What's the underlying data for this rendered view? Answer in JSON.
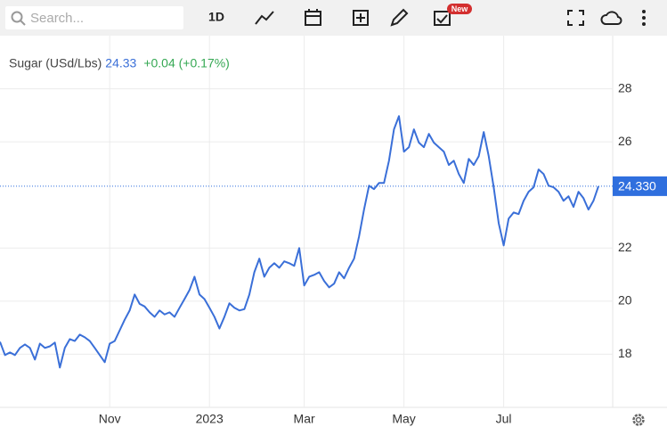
{
  "toolbar": {
    "search_placeholder": "Search...",
    "interval": "1D",
    "badge": "New"
  },
  "chart_data": {
    "type": "line",
    "header": {
      "symbol": "Sugar (USd/Lbs)",
      "price": "24.33",
      "change": "+0.04 (+0.17%)"
    },
    "categories": [
      null,
      null,
      null,
      null,
      null,
      null,
      null,
      null,
      null,
      null,
      null,
      null,
      null,
      null,
      null,
      null,
      null,
      null,
      null,
      null,
      null,
      null,
      "Nov",
      null,
      null,
      null,
      null,
      null,
      null,
      null,
      null,
      null,
      null,
      null,
      null,
      null,
      null,
      null,
      null,
      null,
      null,
      null,
      "2023",
      null,
      null,
      null,
      null,
      null,
      null,
      null,
      null,
      null,
      null,
      null,
      null,
      null,
      null,
      null,
      null,
      null,
      null,
      "Mar",
      null,
      null,
      null,
      null,
      null,
      null,
      null,
      null,
      null,
      null,
      null,
      null,
      null,
      null,
      null,
      null,
      null,
      null,
      null,
      "May",
      null,
      null,
      null,
      null,
      null,
      null,
      null,
      null,
      null,
      null,
      null,
      null,
      null,
      null,
      null,
      null,
      null,
      null,
      null,
      "Jul",
      null,
      null,
      null,
      null,
      null,
      null,
      null,
      null,
      null,
      null,
      null,
      null,
      null,
      null,
      null,
      null,
      null,
      null,
      null
    ],
    "values": [
      18.47,
      17.97,
      18.07,
      17.97,
      18.24,
      18.37,
      18.24,
      17.8,
      18.4,
      18.24,
      18.3,
      18.44,
      17.5,
      18.24,
      18.57,
      18.5,
      18.74,
      18.64,
      18.5,
      18.24,
      17.97,
      17.7,
      18.4,
      18.5,
      18.9,
      19.3,
      19.65,
      20.25,
      19.9,
      19.8,
      19.58,
      19.41,
      19.65,
      19.5,
      19.58,
      19.41,
      19.75,
      20.08,
      20.42,
      20.92,
      20.25,
      20.08,
      19.75,
      19.41,
      18.97,
      19.41,
      19.92,
      19.75,
      19.65,
      19.7,
      20.25,
      21.09,
      21.6,
      20.92,
      21.26,
      21.43,
      21.26,
      21.5,
      21.43,
      21.33,
      22.0,
      20.59,
      20.92,
      20.99,
      21.09,
      20.76,
      20.52,
      20.66,
      21.09,
      20.86,
      21.26,
      21.6,
      22.44,
      23.45,
      24.35,
      24.22,
      24.45,
      24.45,
      25.29,
      26.47,
      26.97,
      25.63,
      25.8,
      26.47,
      25.97,
      25.8,
      26.3,
      25.97,
      25.8,
      25.63,
      25.13,
      25.29,
      24.79,
      24.45,
      25.36,
      25.13,
      25.46,
      26.37,
      25.46,
      24.29,
      22.94,
      22.1,
      23.11,
      23.34,
      23.28,
      23.78,
      24.12,
      24.29,
      24.96,
      24.79,
      24.35,
      24.29,
      24.12,
      23.78,
      23.95,
      23.55,
      24.12,
      23.88,
      23.45,
      23.78,
      24.33
    ],
    "color": "#3a6fd8",
    "ylim": [
      16,
      30
    ],
    "yticks": [
      18,
      20,
      22,
      26,
      28
    ],
    "grid": true,
    "price_line": {
      "value": 24.33,
      "label": "24.330",
      "color": "#2f6fde"
    }
  }
}
